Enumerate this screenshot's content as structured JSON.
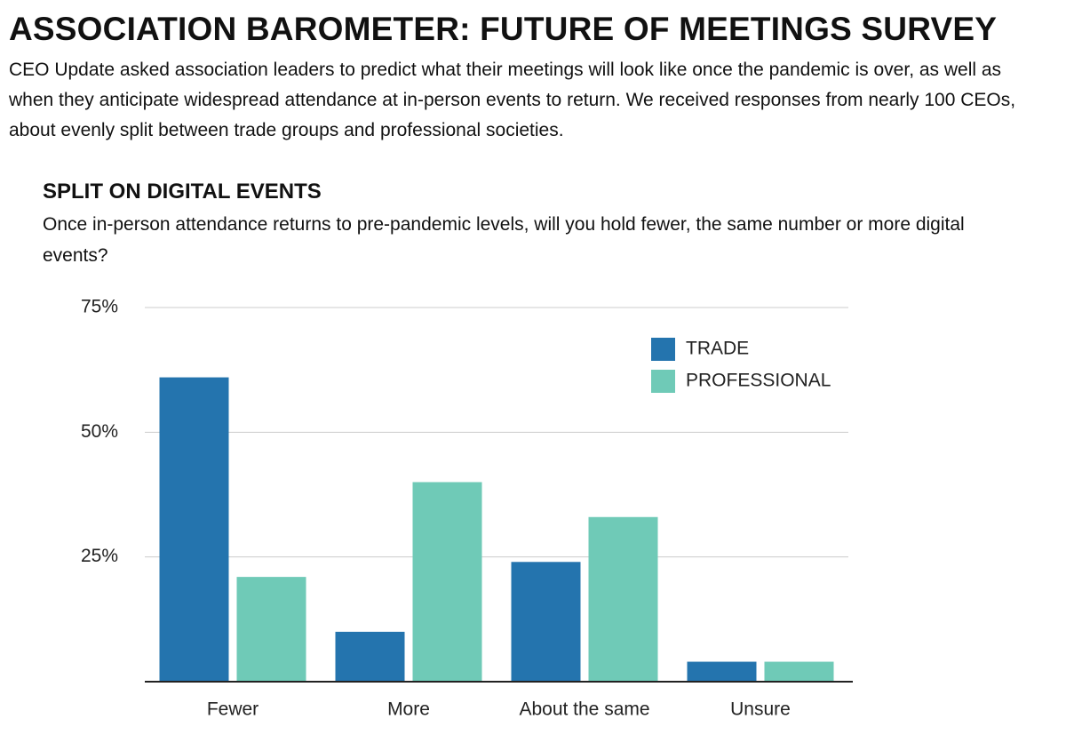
{
  "title": "ASSOCIATION BAROMETER: FUTURE OF MEETINGS SURVEY",
  "intro": "CEO Update asked association leaders to predict what their meetings will look like once the pandemic is over, as well as when they anticipate widespread attendance at in-person events to return. We received responses from nearly 100 CEOs, about evenly split between trade groups and professional societies.",
  "chart_data": {
    "type": "bar",
    "title": "SPLIT ON DIGITAL EVENTS",
    "subtitle": "Once in-person attendance returns to pre-pandemic levels, will you hold fewer, the same number or more digital events?",
    "categories": [
      "Fewer",
      "More",
      "About the same",
      "Unsure"
    ],
    "series": [
      {
        "name": "TRADE",
        "color": "#2474ae",
        "values": [
          61,
          10,
          24,
          4
        ]
      },
      {
        "name": "PROFESSIONAL",
        "color": "#6fcab7",
        "values": [
          21,
          40,
          33,
          4
        ]
      }
    ],
    "ylim": [
      0,
      75
    ],
    "yticks": [
      {
        "value": 25,
        "label": "25%"
      },
      {
        "value": 50,
        "label": "50%"
      },
      {
        "value": 75,
        "label": "75%"
      }
    ],
    "grid": true,
    "legend": "upper right"
  }
}
